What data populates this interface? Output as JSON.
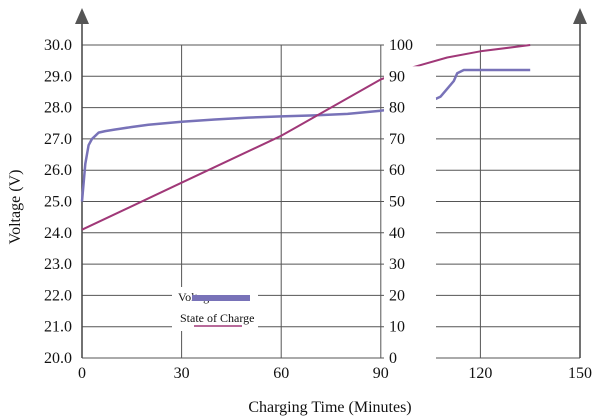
{
  "chart_data": {
    "type": "line",
    "title": "",
    "xlabel": "Charging Time (Minutes)",
    "ylabel": "Voltage (V)",
    "x_ticks": [
      "0",
      "30",
      "60",
      "90",
      "120",
      "150"
    ],
    "y_left_ticks": [
      "20.0",
      "21.0",
      "22.0",
      "23.0",
      "24.0",
      "25.0",
      "26.0",
      "27.0",
      "28.0",
      "29.0",
      "30.0"
    ],
    "y_right_ticks": [
      "0",
      "10",
      "20",
      "30",
      "40",
      "50",
      "60",
      "70",
      "80",
      "90",
      "100"
    ],
    "xlim": [
      0,
      150
    ],
    "ylim_left": [
      20,
      30
    ],
    "ylim_right": [
      0,
      100
    ],
    "grid": true,
    "legend_position": "lower-left",
    "series": [
      {
        "name": "Voltage",
        "axis": "left",
        "color": "#7872b8",
        "x": [
          0,
          1,
          2,
          3,
          4,
          5,
          7,
          10,
          15,
          20,
          30,
          40,
          50,
          60,
          70,
          80,
          90,
          95,
          100,
          105,
          108,
          110,
          112,
          113,
          115,
          118,
          125,
          135
        ],
        "values": [
          25.0,
          26.2,
          26.8,
          27.0,
          27.1,
          27.2,
          27.25,
          27.3,
          27.38,
          27.45,
          27.55,
          27.62,
          27.68,
          27.72,
          27.75,
          27.8,
          27.9,
          27.96,
          28.05,
          28.2,
          28.35,
          28.6,
          28.85,
          29.1,
          29.2,
          29.2,
          29.2,
          29.2
        ]
      },
      {
        "name": "State of Charge",
        "axis": "right",
        "color": "#a03878",
        "x": [
          0,
          30,
          60,
          90,
          100,
          110,
          120,
          135
        ],
        "values": [
          41,
          56,
          71,
          89,
          93,
          96,
          98,
          100
        ]
      }
    ]
  }
}
